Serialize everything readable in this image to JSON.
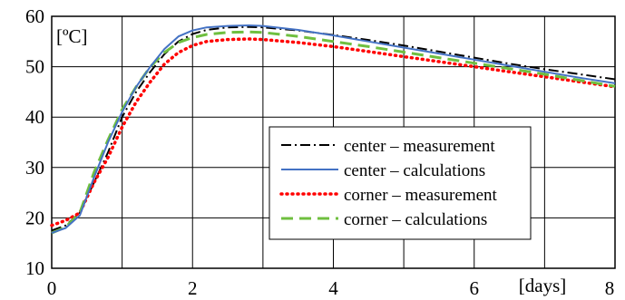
{
  "chart_data": {
    "type": "line",
    "title": "",
    "xlabel": "[days]",
    "ylabel": "[ºC]",
    "xlim": [
      0,
      8
    ],
    "ylim": [
      10,
      60
    ],
    "xticks": [
      "0",
      "2",
      "4",
      "6",
      "8"
    ],
    "yticks": [
      "10",
      "20",
      "30",
      "40",
      "50",
      "60"
    ],
    "grid": true,
    "legend_position": "right-center",
    "series": [
      {
        "name": "center – measurement",
        "color": "#000000",
        "style": "dash-dot",
        "x": [
          0,
          0.2,
          0.4,
          0.6,
          0.8,
          1.0,
          1.2,
          1.4,
          1.6,
          1.8,
          2.0,
          2.2,
          2.5,
          2.8,
          3.0,
          3.5,
          4.0,
          4.5,
          5.0,
          5.5,
          6.0,
          6.5,
          7.0,
          7.5,
          8.0
        ],
        "y": [
          17.5,
          18.5,
          21,
          27,
          33,
          40,
          45,
          49,
          52.5,
          55,
          56.5,
          57.3,
          57.8,
          57.9,
          57.8,
          57.2,
          56.3,
          55.3,
          54.2,
          53,
          51.8,
          50.6,
          49.5,
          48.5,
          47.5
        ]
      },
      {
        "name": "center – calculations",
        "color": "#4472c4",
        "style": "solid",
        "x": [
          0,
          0.2,
          0.4,
          0.6,
          0.8,
          1.0,
          1.2,
          1.4,
          1.6,
          1.8,
          2.0,
          2.2,
          2.5,
          2.8,
          3.0,
          3.5,
          4.0,
          4.5,
          5.0,
          5.5,
          6.0,
          6.5,
          7.0,
          7.5,
          8.0
        ],
        "y": [
          17,
          18,
          20.5,
          28,
          35,
          41,
          46,
          50,
          53.5,
          56,
          57.2,
          57.8,
          58.1,
          58.2,
          58.1,
          57.3,
          56.2,
          55,
          53.8,
          52.6,
          51.4,
          50.2,
          49,
          47.8,
          46.7
        ]
      },
      {
        "name": "corner – measurement",
        "color": "#ff0000",
        "style": "dotted",
        "x": [
          0,
          0.2,
          0.4,
          0.6,
          0.8,
          1.0,
          1.2,
          1.4,
          1.6,
          1.8,
          2.0,
          2.2,
          2.5,
          2.8,
          3.0,
          3.5,
          4.0,
          4.5,
          5.0,
          5.5,
          6.0,
          6.5,
          7.0,
          7.5,
          8.0
        ],
        "y": [
          18.5,
          19.5,
          21,
          27,
          32,
          38,
          43,
          47,
          50.5,
          52.8,
          54.2,
          55,
          55.4,
          55.5,
          55.4,
          54.8,
          54,
          53,
          52,
          51,
          50,
          49,
          48,
          47,
          46
        ]
      },
      {
        "name": "corner – calculations",
        "color": "#6fbf3f",
        "style": "dashed",
        "x": [
          0,
          0.2,
          0.4,
          0.6,
          0.8,
          1.0,
          1.2,
          1.4,
          1.6,
          1.8,
          2.0,
          2.2,
          2.5,
          2.8,
          3.0,
          3.5,
          4.0,
          4.5,
          5.0,
          5.5,
          6.0,
          6.5,
          7.0,
          7.5,
          8.0
        ],
        "y": [
          17,
          18.2,
          21,
          29,
          35.5,
          41.5,
          46,
          50,
          52.8,
          54.8,
          55.8,
          56.4,
          56.8,
          56.9,
          56.8,
          56,
          55,
          54,
          52.9,
          51.8,
          50.7,
          49.6,
          48.5,
          47.3,
          46.1
        ]
      }
    ]
  }
}
